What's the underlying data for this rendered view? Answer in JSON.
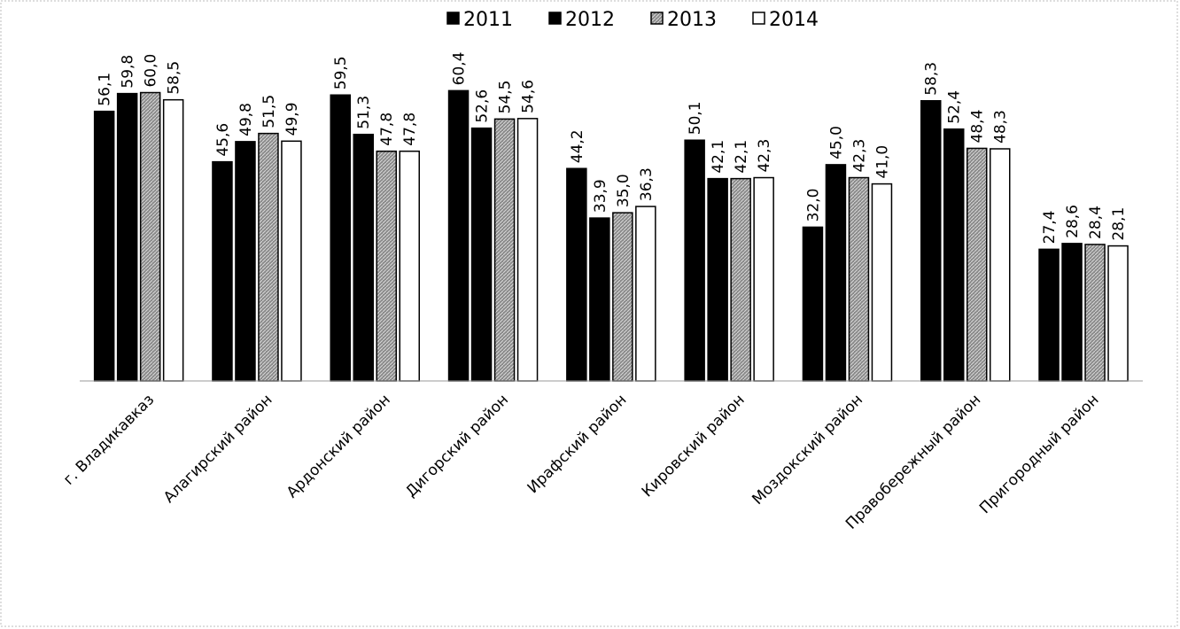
{
  "chart_data": {
    "type": "bar",
    "title": "",
    "xlabel": "",
    "ylabel": "",
    "ylim": [
      0,
      65
    ],
    "grid": false,
    "legend_position": "top-center",
    "categories": [
      "г. Владикавказ",
      "Алагирский район",
      "Ардонский район",
      "Дигорский район",
      "Ирафский район",
      "Кировский район",
      "Моздокский район",
      "Правобережный район",
      "Пригородный район"
    ],
    "series": [
      {
        "name": "2011",
        "values": [
          56.1,
          45.6,
          59.5,
          60.4,
          44.2,
          50.1,
          32.0,
          58.3,
          27.4
        ],
        "labels": [
          "56,1",
          "45,6",
          "59,5",
          "60,4",
          "44,2",
          "50,1",
          "32,0",
          "58,3",
          "27,4"
        ],
        "fill": "#000000"
      },
      {
        "name": "2012",
        "values": [
          59.8,
          49.8,
          51.3,
          52.6,
          33.9,
          42.1,
          45.0,
          52.4,
          28.6
        ],
        "labels": [
          "59,8",
          "49,8",
          "51,3",
          "52,6",
          "33,9",
          "42,1",
          "45,0",
          "52,4",
          "28,6"
        ],
        "fill": "#000000"
      },
      {
        "name": "2013",
        "values": [
          60.0,
          51.5,
          47.8,
          54.5,
          35.0,
          42.1,
          42.3,
          48.4,
          28.4
        ],
        "labels": [
          "60,0",
          "51,5",
          "47,8",
          "54,5",
          "35,0",
          "42,1",
          "42,3",
          "48,4",
          "28,4"
        ],
        "fill": "#7a7a7a"
      },
      {
        "name": "2014",
        "values": [
          58.5,
          49.9,
          47.8,
          54.6,
          36.3,
          42.3,
          41.0,
          48.3,
          28.1
        ],
        "labels": [
          "58,5",
          "49,9",
          "47,8",
          "54,6",
          "36,3",
          "42,3",
          "41,0",
          "48,3",
          "28,1"
        ],
        "fill": "#ffffff"
      }
    ]
  }
}
